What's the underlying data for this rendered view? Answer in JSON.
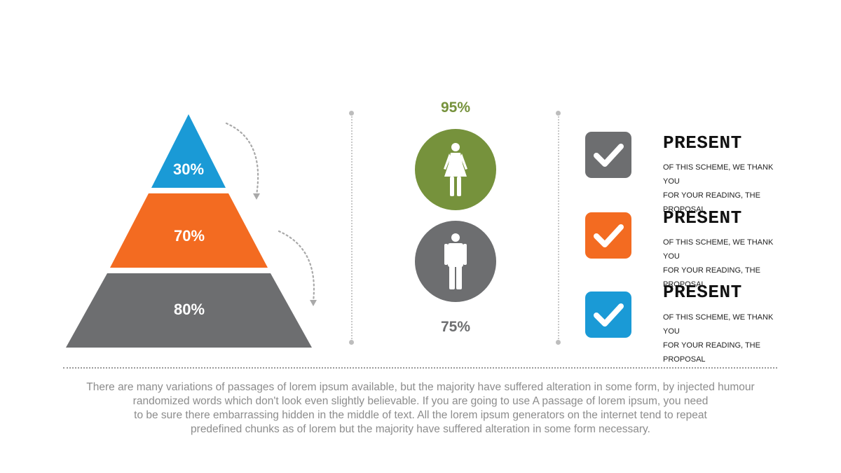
{
  "pyramid": {
    "tiers": [
      {
        "label": "30%",
        "color": "#1a9ad6"
      },
      {
        "label": "70%",
        "color": "#f36b21"
      },
      {
        "label": "80%",
        "color": "#6d6e70"
      }
    ]
  },
  "people": {
    "female": {
      "percent": "95%",
      "color": "#76923c"
    },
    "male": {
      "percent": "75%",
      "color": "#6d6e70"
    }
  },
  "items": [
    {
      "title": "PRESENT",
      "desc_lines": [
        "OF THIS SCHEME, WE THANK YOU",
        "FOR YOUR READING, THE",
        "PROPOSAL"
      ],
      "color": "#6d6e70"
    },
    {
      "title": "PRESENT",
      "desc_lines": [
        "OF THIS SCHEME, WE THANK YOU",
        "FOR YOUR READING, THE",
        "PROPOSAL"
      ],
      "color": "#f36b21"
    },
    {
      "title": "PRESENT",
      "desc_lines": [
        "OF THIS SCHEME, WE THANK YOU",
        "FOR YOUR READING, THE",
        "PROPOSAL"
      ],
      "color": "#1a9ad6"
    }
  ],
  "footer": {
    "lines": [
      "There are many variations of passages of lorem ipsum available, but the majority have suffered alteration in some form, by injected humour",
      "randomized words which don't look even slightly believable. If you are going to use A passage of lorem ipsum, you need",
      "to be sure there embarrassing hidden in the middle of text. All the lorem ipsum generators on the internet tend to repeat",
      "predefined chunks as of lorem but the majority have suffered alteration in some form  necessary."
    ]
  }
}
